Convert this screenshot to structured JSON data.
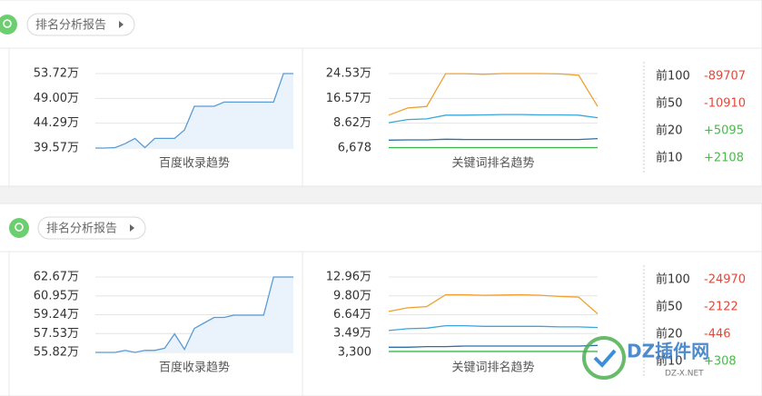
{
  "cards": [
    {
      "button": "排名分析报告",
      "index_chart": {
        "title": "百度收录趋势",
        "color": "#5b9bd5",
        "ylim": [
          395700,
          537200
        ],
        "yticks": [
          {
            "value": 395700,
            "label": "39.57万"
          },
          {
            "value": 442900,
            "label": "44.29万"
          },
          {
            "value": 490000,
            "label": "49.00万"
          },
          {
            "value": 537200,
            "label": "53.72万"
          }
        ],
        "series": [
          {
            "color": "#5b9bd5",
            "values": [
              395700,
              395700,
              396500,
              404000,
              414000,
              396500,
              414000,
              414000,
              414000,
              430000,
              475000,
              475000,
              475000,
              483000,
              483000,
              483000,
              483000,
              483000,
              483000,
              537200,
              537200
            ]
          }
        ]
      },
      "rank_chart": {
        "title": "关键词排名趋势",
        "ylim": [
          6678,
          245300
        ],
        "yticks": [
          {
            "value": 6678,
            "label": "6,678"
          },
          {
            "value": 86200,
            "label": "8.62万"
          },
          {
            "value": 165700,
            "label": "16.57万"
          },
          {
            "value": 245300,
            "label": "24.53万"
          }
        ],
        "series": [
          {
            "color": "#f0a030",
            "values": [
              112000,
              135000,
              140000,
              245000,
              245000,
              243000,
              245300,
              245300,
              245300,
              244000,
              240000,
              140000
            ]
          },
          {
            "color": "#3aa6dd",
            "values": [
              88000,
              98000,
              100000,
              112000,
              112000,
              113000,
              114000,
              114000,
              113000,
              113000,
              112000,
              104000
            ]
          },
          {
            "color": "#2d6fa8",
            "values": [
              32000,
              33000,
              33000,
              35000,
              34000,
              34000,
              34000,
              34000,
              34000,
              34000,
              34000,
              37000
            ]
          },
          {
            "color": "#3bb54a",
            "values": [
              8000,
              8000,
              8000,
              8000,
              8000,
              8000,
              8000,
              8000,
              8000,
              8000,
              8000,
              8000
            ]
          }
        ]
      },
      "ranks": [
        {
          "label": "前100",
          "change": "-89707"
        },
        {
          "label": "前50",
          "change": "-10910"
        },
        {
          "label": "前20",
          "change": "+5095"
        },
        {
          "label": "前10",
          "change": "+2108"
        }
      ]
    },
    {
      "button": "排名分析报告",
      "index_chart": {
        "title": "百度收录趋势",
        "color": "#5b9bd5",
        "ylim": [
          558200,
          626700
        ],
        "yticks": [
          {
            "value": 558200,
            "label": "55.82万"
          },
          {
            "value": 575300,
            "label": "57.53万"
          },
          {
            "value": 592400,
            "label": "59.24万"
          },
          {
            "value": 609500,
            "label": "60.95万"
          },
          {
            "value": 626700,
            "label": "62.67万"
          }
        ],
        "series": [
          {
            "color": "#5b9bd5",
            "values": [
              558200,
              558200,
              558200,
              560000,
              558200,
              560000,
              560000,
              562000,
              575000,
              561000,
              580000,
              585000,
              590000,
              590000,
              592000,
              592000,
              592000,
              592000,
              626700,
              626700,
              626700
            ]
          }
        ]
      },
      "rank_chart": {
        "title": "关键词排名趋势",
        "ylim": [
          3300,
          129600
        ],
        "yticks": [
          {
            "value": 3300,
            "label": "3,300"
          },
          {
            "value": 34900,
            "label": "3.49万"
          },
          {
            "value": 66400,
            "label": "6.64万"
          },
          {
            "value": 98000,
            "label": "9.80万"
          },
          {
            "value": 129600,
            "label": "12.96万"
          }
        ],
        "series": [
          {
            "color": "#f0a030",
            "values": [
              72000,
              78000,
              80000,
              100000,
              100000,
              99000,
              99500,
              100000,
              99000,
              97000,
              96000,
              68000
            ]
          },
          {
            "color": "#3aa6dd",
            "values": [
              40000,
              43000,
              44000,
              48000,
              48000,
              47000,
              47000,
              47000,
              47000,
              46000,
              46000,
              45000
            ]
          },
          {
            "color": "#2d6fa8",
            "values": [
              12000,
              12000,
              13000,
              13000,
              14000,
              14000,
              14000,
              14000,
              14000,
              14000,
              14000,
              15000
            ]
          },
          {
            "color": "#3bb54a",
            "values": [
              5000,
              5000,
              5000,
              5000,
              5000,
              5000,
              5000,
              5000,
              5000,
              5000,
              5000,
              5000
            ]
          }
        ]
      },
      "ranks": [
        {
          "label": "前100",
          "change": "-24970"
        },
        {
          "label": "前50",
          "change": "-2122"
        },
        {
          "label": "前20",
          "change": "-446"
        },
        {
          "label": "前10",
          "change": "+308"
        }
      ]
    }
  ],
  "watermark": {
    "name": "DZ插件网",
    "site": "DZ-X.NET"
  }
}
